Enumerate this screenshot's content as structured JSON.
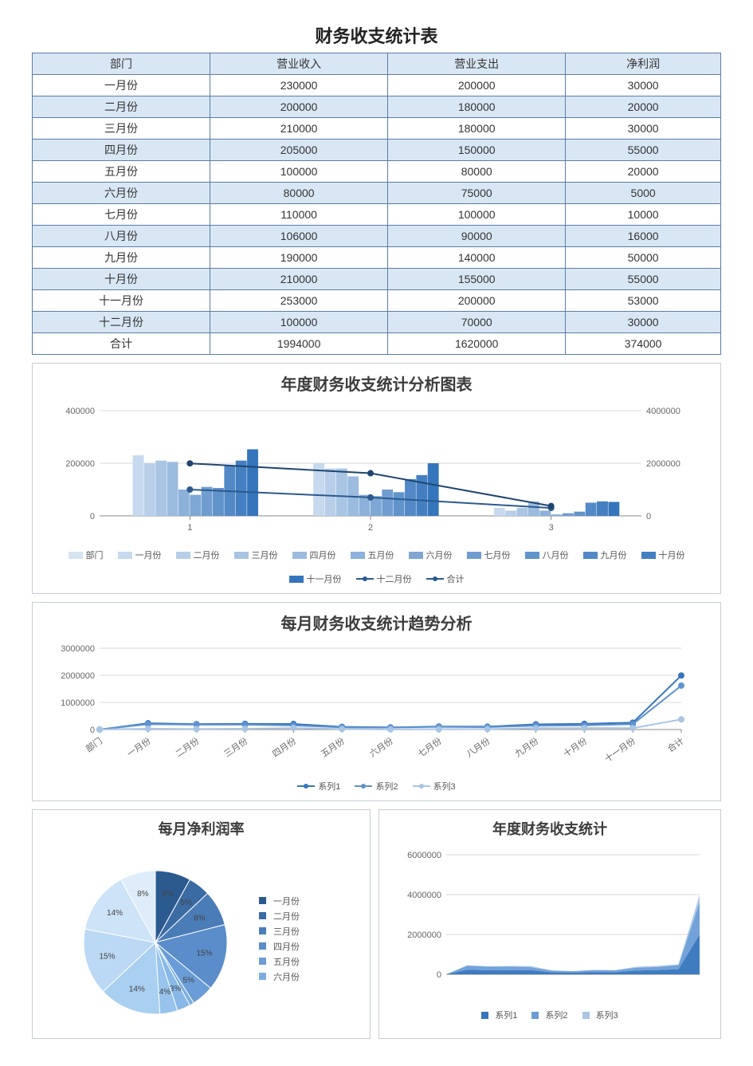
{
  "title": "财务收支统计表",
  "table": {
    "columns": [
      "部门",
      "营业收入",
      "营业支出",
      "净利润"
    ],
    "rows": [
      [
        "一月份",
        "230000",
        "200000",
        "30000"
      ],
      [
        "二月份",
        "200000",
        "180000",
        "20000"
      ],
      [
        "三月份",
        "210000",
        "180000",
        "30000"
      ],
      [
        "四月份",
        "205000",
        "150000",
        "55000"
      ],
      [
        "五月份",
        "100000",
        "80000",
        "20000"
      ],
      [
        "六月份",
        "80000",
        "75000",
        "5000"
      ],
      [
        "七月份",
        "110000",
        "100000",
        "10000"
      ],
      [
        "八月份",
        "106000",
        "90000",
        "16000"
      ],
      [
        "九月份",
        "190000",
        "140000",
        "50000"
      ],
      [
        "十月份",
        "210000",
        "155000",
        "55000"
      ],
      [
        "十一月份",
        "253000",
        "200000",
        "53000"
      ],
      [
        "十二月份",
        "100000",
        "70000",
        "30000"
      ],
      [
        "合计",
        "1994000",
        "1620000",
        "374000"
      ]
    ],
    "header_bg": "#d9e7f5",
    "alt_bg": "#d9e7f5",
    "border_color": "#5a7ca8"
  },
  "chart1": {
    "type": "bar+line",
    "title": "年度财务收支统计分析图表",
    "left_ylim": [
      0,
      400000
    ],
    "left_yticks": [
      0,
      200000,
      400000
    ],
    "right_ylim": [
      0,
      4000000
    ],
    "right_yticks": [
      0,
      2000000,
      4000000
    ],
    "x_categories": [
      "1",
      "2",
      "3"
    ],
    "bar_series": [
      {
        "name": "部门",
        "color": "#d5e3f3",
        "values": [
          0,
          0,
          0
        ]
      },
      {
        "name": "一月份",
        "color": "#c6d9ee",
        "values": [
          230000,
          200000,
          30000
        ]
      },
      {
        "name": "二月份",
        "color": "#b8cfe9",
        "values": [
          200000,
          180000,
          20000
        ]
      },
      {
        "name": "三月份",
        "color": "#a9c5e4",
        "values": [
          210000,
          180000,
          30000
        ]
      },
      {
        "name": "四月份",
        "color": "#9bbbdf",
        "values": [
          205000,
          150000,
          55000
        ]
      },
      {
        "name": "五月份",
        "color": "#8cb1da",
        "values": [
          100000,
          80000,
          20000
        ]
      },
      {
        "name": "六月份",
        "color": "#7ea7d5",
        "values": [
          80000,
          75000,
          5000
        ]
      },
      {
        "name": "七月份",
        "color": "#6f9dd0",
        "values": [
          110000,
          100000,
          10000
        ]
      },
      {
        "name": "八月份",
        "color": "#6193cb",
        "values": [
          106000,
          90000,
          16000
        ]
      },
      {
        "name": "九月份",
        "color": "#5289c6",
        "values": [
          190000,
          140000,
          50000
        ]
      },
      {
        "name": "十月份",
        "color": "#447fc1",
        "values": [
          210000,
          155000,
          55000
        ]
      },
      {
        "name": "十一月份",
        "color": "#3575bc",
        "values": [
          253000,
          200000,
          53000
        ]
      }
    ],
    "line_series": [
      {
        "name": "十二月份",
        "color": "#2b5a8f",
        "values": [
          100000,
          70000,
          30000
        ],
        "axis": "left"
      },
      {
        "name": "合计",
        "color": "#1f4670",
        "values": [
          1994000,
          1620000,
          374000
        ],
        "axis": "right"
      }
    ],
    "grid_color": "#d9d9d9",
    "axis_color": "#888888",
    "font_size_labels": 11,
    "title_fontsize": 20
  },
  "chart2": {
    "type": "line",
    "title": "每月财务收支统计趋势分析",
    "ylim": [
      0,
      3000000
    ],
    "yticks": [
      0,
      1000000,
      2000000,
      3000000
    ],
    "x_labels": [
      "部门",
      "一月份",
      "二月份",
      "三月份",
      "四月份",
      "五月份",
      "六月份",
      "七月份",
      "八月份",
      "九月份",
      "十月份",
      "十一月份",
      "合计"
    ],
    "series": [
      {
        "name": "系列1",
        "color": "#3575bc",
        "values": [
          0,
          230000,
          200000,
          210000,
          205000,
          100000,
          80000,
          110000,
          106000,
          190000,
          210000,
          253000,
          1994000
        ]
      },
      {
        "name": "系列2",
        "color": "#5f93cf",
        "values": [
          0,
          200000,
          180000,
          180000,
          150000,
          80000,
          75000,
          100000,
          90000,
          140000,
          155000,
          200000,
          1620000
        ]
      },
      {
        "name": "系列3",
        "color": "#a9c5e4",
        "values": [
          0,
          30000,
          20000,
          30000,
          55000,
          20000,
          5000,
          10000,
          16000,
          50000,
          55000,
          53000,
          374000
        ]
      }
    ],
    "grid_color": "#d9d9d9",
    "marker_size": 4,
    "title_fontsize": 20
  },
  "chart3": {
    "type": "pie",
    "title": "每月净利润率",
    "slices": [
      {
        "name": "一月份",
        "value": 8,
        "color": "#2b5a8f"
      },
      {
        "name": "二月份",
        "value": 5,
        "color": "#3a6ba3"
      },
      {
        "name": "三月份",
        "value": 8,
        "color": "#4a7cb7"
      },
      {
        "name": "四月份",
        "value": 15,
        "color": "#5a8dc9"
      },
      {
        "name": "五月份",
        "value": 5,
        "color": "#6a9dd7"
      },
      {
        "name": "六月份",
        "value": 1,
        "color": "#7aaee2"
      },
      {
        "name": "七月份",
        "value": 3,
        "color": "#87b8e8"
      },
      {
        "name": "八月份",
        "value": 4,
        "color": "#97c3ed"
      },
      {
        "name": "九月份",
        "value": 14,
        "color": "#a9cff1"
      },
      {
        "name": "十月份",
        "value": 15,
        "color": "#bbd9f4"
      },
      {
        "name": "十一月份",
        "value": 14,
        "color": "#cde3f7"
      },
      {
        "name": "十二月份",
        "value": 8,
        "color": "#dfedfa"
      }
    ],
    "label_format": "{v}%",
    "title_fontsize": 18,
    "legend_items": [
      "一月份",
      "二月份",
      "三月份",
      "四月份",
      "五月份",
      "六月份"
    ]
  },
  "chart4": {
    "type": "area",
    "title": "年度财务收支统计",
    "ylim": [
      0,
      6000000
    ],
    "yticks": [
      0,
      2000000,
      4000000,
      6000000
    ],
    "x_count": 13,
    "series": [
      {
        "name": "系列1",
        "color": "#3575bc",
        "values": [
          0,
          230000,
          200000,
          210000,
          205000,
          100000,
          80000,
          110000,
          106000,
          190000,
          210000,
          253000,
          1994000
        ]
      },
      {
        "name": "系列2",
        "color": "#6a9dd7",
        "values": [
          0,
          200000,
          180000,
          180000,
          150000,
          80000,
          75000,
          100000,
          90000,
          140000,
          155000,
          200000,
          1620000
        ]
      },
      {
        "name": "系列3",
        "color": "#a9c5e4",
        "values": [
          0,
          30000,
          20000,
          30000,
          55000,
          20000,
          5000,
          10000,
          16000,
          50000,
          55000,
          53000,
          374000
        ]
      }
    ],
    "stacked": true,
    "grid_color": "#d9d9d9",
    "title_fontsize": 18,
    "legend": [
      "系列1",
      "系列2",
      "系列3"
    ]
  }
}
